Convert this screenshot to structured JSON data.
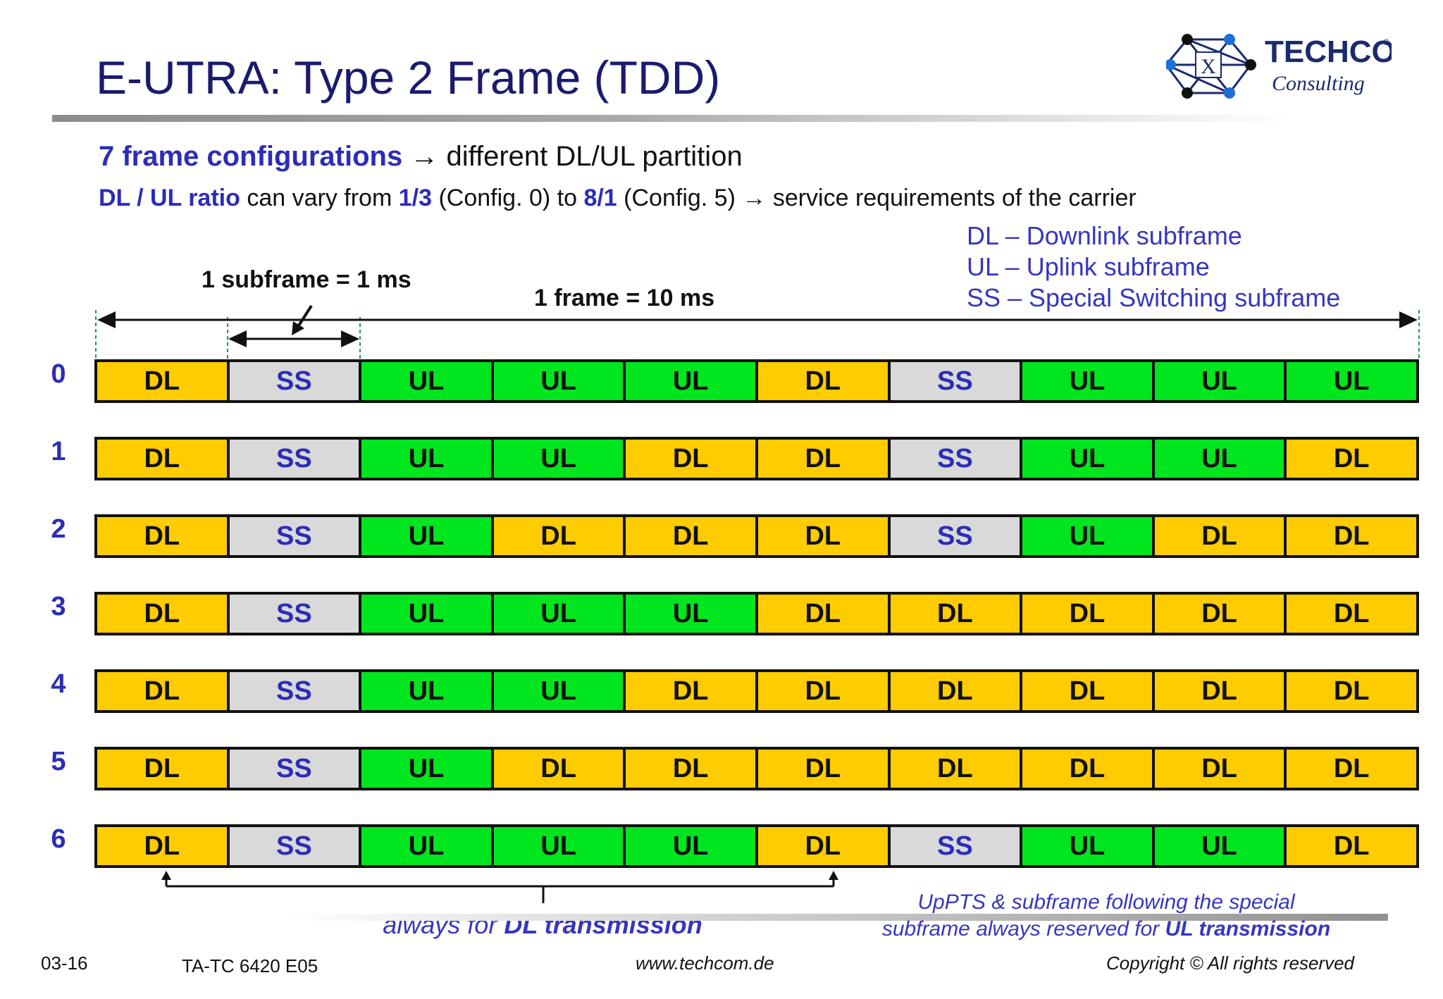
{
  "header": {
    "title": "E-UTRA: Type 2 Frame (TDD)",
    "logo_name": "TECHCOM",
    "logo_reg": "®",
    "logo_sub": "Consulting"
  },
  "intro": {
    "line1_highlight": "7 frame configurations",
    "line1_arrow": "→",
    "line1_rest": "different DL/UL partition",
    "line2_a": "DL / UL ratio",
    "line2_b": "can vary from",
    "line2_c": "1/3",
    "line2_d": "(Config. 0) to",
    "line2_e": "8/1",
    "line2_f": "(Config. 5)",
    "line2_arrow": "→",
    "line2_g": "service requirements of the carrier"
  },
  "legend": {
    "dl": "DL – Downlink subframe",
    "ul": "UL – Uplink subframe",
    "ss": "SS – Special Switching subframe"
  },
  "dimensions": {
    "subframe_label": "1 subframe = 1 ms",
    "frame_label": "1 frame = 10 ms"
  },
  "configurations": [
    {
      "id": "0",
      "cells": [
        "DL",
        "SS",
        "UL",
        "UL",
        "UL",
        "DL",
        "SS",
        "UL",
        "UL",
        "UL"
      ]
    },
    {
      "id": "1",
      "cells": [
        "DL",
        "SS",
        "UL",
        "UL",
        "DL",
        "DL",
        "SS",
        "UL",
        "UL",
        "DL"
      ]
    },
    {
      "id": "2",
      "cells": [
        "DL",
        "SS",
        "UL",
        "DL",
        "DL",
        "DL",
        "SS",
        "UL",
        "DL",
        "DL"
      ]
    },
    {
      "id": "3",
      "cells": [
        "DL",
        "SS",
        "UL",
        "UL",
        "UL",
        "DL",
        "DL",
        "DL",
        "DL",
        "DL"
      ]
    },
    {
      "id": "4",
      "cells": [
        "DL",
        "SS",
        "UL",
        "UL",
        "DL",
        "DL",
        "DL",
        "DL",
        "DL",
        "DL"
      ]
    },
    {
      "id": "5",
      "cells": [
        "DL",
        "SS",
        "UL",
        "DL",
        "DL",
        "DL",
        "DL",
        "DL",
        "DL",
        "DL"
      ]
    },
    {
      "id": "6",
      "cells": [
        "DL",
        "SS",
        "UL",
        "UL",
        "UL",
        "DL",
        "SS",
        "UL",
        "UL",
        "DL"
      ]
    }
  ],
  "colors": {
    "DL": "#ffcc00",
    "UL": "#00e61e",
    "SS": "#d9d9d9",
    "title": "#1a1a6e",
    "accent_blue": "#2c2cb8"
  },
  "notes": {
    "dl_always_pre": "always for",
    "dl_always_bold": "DL transmission",
    "uppts_line1": "UpPTS & subframe following the special",
    "uppts_line2_pre": "subframe always reserved for",
    "uppts_line2_bold": "UL transmission"
  },
  "footer": {
    "page": "03-16",
    "doc_id": "TA-TC 6420 E05",
    "url": "www.techcom.de",
    "copyright": "Copyright ©  All rights reserved"
  }
}
